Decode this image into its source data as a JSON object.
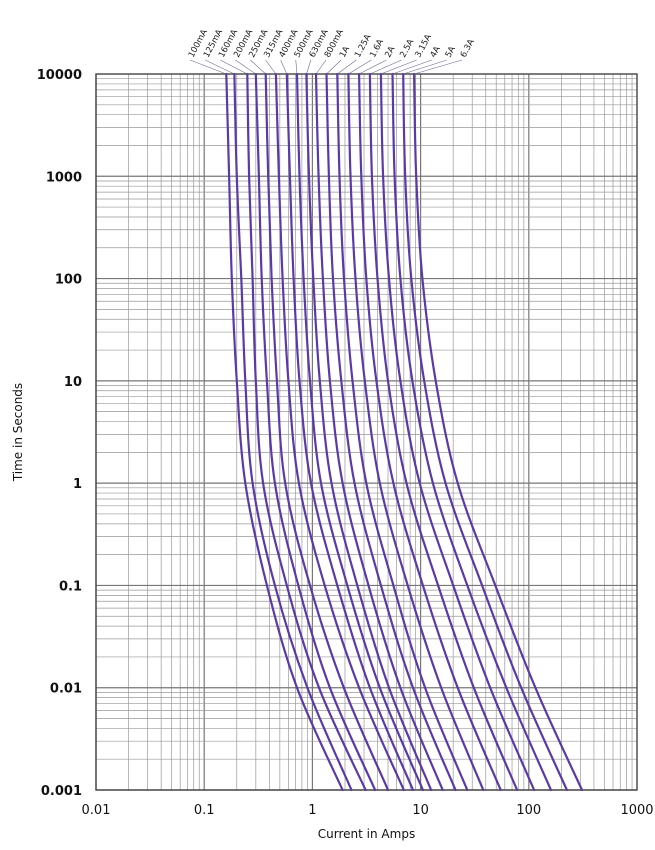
{
  "chart_data": {
    "type": "line",
    "title": "",
    "xlabel": "Current in Amps",
    "ylabel": "Time in Seconds",
    "x_scale": "log",
    "y_scale": "log",
    "xlim": [
      0.01,
      1000
    ],
    "ylim": [
      0.001,
      10000
    ],
    "x_ticks": [
      "0.01",
      "0.1",
      "1",
      "10",
      "100",
      "1000"
    ],
    "y_ticks": [
      "10000",
      "1000",
      "100",
      "10",
      "1",
      "0.1",
      "0.01",
      "0.001"
    ],
    "grid": true,
    "legend_placement": "top, rotated labels with leader lines to each curve",
    "line_color": "#5b3aa8",
    "series": [
      {
        "name": "100mA",
        "points": [
          [
            0.16,
            10000
          ],
          [
            0.17,
            1000
          ],
          [
            0.18,
            100
          ],
          [
            0.2,
            10
          ],
          [
            0.24,
            1
          ],
          [
            0.38,
            0.1
          ],
          [
            0.72,
            0.01
          ],
          [
            1.9,
            0.001
          ]
        ]
      },
      {
        "name": "125mA",
        "points": [
          [
            0.19,
            10000
          ],
          [
            0.2,
            1000
          ],
          [
            0.22,
            100
          ],
          [
            0.24,
            10
          ],
          [
            0.28,
            1
          ],
          [
            0.45,
            0.1
          ],
          [
            0.9,
            0.01
          ],
          [
            2.3,
            0.001
          ]
        ]
      },
      {
        "name": "160mA",
        "points": [
          [
            0.25,
            10000
          ],
          [
            0.26,
            1000
          ],
          [
            0.28,
            100
          ],
          [
            0.3,
            10
          ],
          [
            0.35,
            1
          ],
          [
            0.58,
            0.1
          ],
          [
            1.15,
            0.01
          ],
          [
            3.1,
            0.001
          ]
        ]
      },
      {
        "name": "200mA",
        "points": [
          [
            0.3,
            10000
          ],
          [
            0.32,
            1000
          ],
          [
            0.34,
            100
          ],
          [
            0.38,
            10
          ],
          [
            0.45,
            1
          ],
          [
            0.74,
            0.1
          ],
          [
            1.45,
            0.01
          ],
          [
            3.8,
            0.001
          ]
        ]
      },
      {
        "name": "250mA",
        "points": [
          [
            0.37,
            10000
          ],
          [
            0.39,
            1000
          ],
          [
            0.42,
            100
          ],
          [
            0.47,
            10
          ],
          [
            0.56,
            1
          ],
          [
            0.95,
            0.1
          ],
          [
            1.95,
            0.01
          ],
          [
            5.0,
            0.001
          ]
        ]
      },
      {
        "name": "315mA",
        "points": [
          [
            0.46,
            10000
          ],
          [
            0.49,
            1000
          ],
          [
            0.53,
            100
          ],
          [
            0.6,
            10
          ],
          [
            0.75,
            1
          ],
          [
            1.3,
            0.1
          ],
          [
            2.7,
            0.01
          ],
          [
            7.0,
            0.001
          ]
        ]
      },
      {
        "name": "400mA",
        "points": [
          [
            0.58,
            10000
          ],
          [
            0.62,
            1000
          ],
          [
            0.67,
            100
          ],
          [
            0.76,
            10
          ],
          [
            0.97,
            1
          ],
          [
            1.7,
            0.1
          ],
          [
            3.4,
            0.01
          ],
          [
            8.5,
            0.001
          ]
        ]
      },
      {
        "name": "500mA",
        "points": [
          [
            0.72,
            10000
          ],
          [
            0.76,
            1000
          ],
          [
            0.83,
            100
          ],
          [
            0.95,
            10
          ],
          [
            1.2,
            1
          ],
          [
            2.1,
            0.1
          ],
          [
            4.2,
            0.01
          ],
          [
            10.5,
            0.001
          ]
        ]
      },
      {
        "name": "630mA",
        "points": [
          [
            0.88,
            10000
          ],
          [
            0.93,
            1000
          ],
          [
            1.02,
            100
          ],
          [
            1.17,
            10
          ],
          [
            1.5,
            1
          ],
          [
            2.6,
            0.1
          ],
          [
            5.1,
            0.01
          ],
          [
            12.5,
            0.001
          ]
        ]
      },
      {
        "name": "800mA",
        "points": [
          [
            1.08,
            10000
          ],
          [
            1.14,
            1000
          ],
          [
            1.25,
            100
          ],
          [
            1.45,
            10
          ],
          [
            1.9,
            1
          ],
          [
            3.3,
            0.1
          ],
          [
            6.5,
            0.01
          ],
          [
            16.0,
            0.001
          ]
        ]
      },
      {
        "name": "1A",
        "points": [
          [
            1.35,
            10000
          ],
          [
            1.42,
            1000
          ],
          [
            1.55,
            100
          ],
          [
            1.85,
            10
          ],
          [
            2.45,
            1
          ],
          [
            4.3,
            0.1
          ],
          [
            8.5,
            0.01
          ],
          [
            21.0,
            0.001
          ]
        ]
      },
      {
        "name": "1.25A",
        "points": [
          [
            1.7,
            10000
          ],
          [
            1.78,
            1000
          ],
          [
            1.96,
            100
          ],
          [
            2.35,
            10
          ],
          [
            3.15,
            1
          ],
          [
            5.6,
            0.1
          ],
          [
            11.0,
            0.01
          ],
          [
            27.0,
            0.001
          ]
        ]
      },
      {
        "name": "1.6A",
        "points": [
          [
            2.15,
            10000
          ],
          [
            2.25,
            1000
          ],
          [
            2.5,
            100
          ],
          [
            3.05,
            10
          ],
          [
            4.2,
            1
          ],
          [
            7.6,
            0.1
          ],
          [
            15.5,
            0.01
          ],
          [
            38.0,
            0.001
          ]
        ]
      },
      {
        "name": "2A",
        "points": [
          [
            2.7,
            10000
          ],
          [
            2.83,
            1000
          ],
          [
            3.15,
            100
          ],
          [
            3.9,
            10
          ],
          [
            5.6,
            1
          ],
          [
            10.5,
            0.1
          ],
          [
            22.0,
            0.01
          ],
          [
            55.0,
            0.001
          ]
        ]
      },
      {
        "name": "2.5A",
        "points": [
          [
            3.4,
            10000
          ],
          [
            3.55,
            1000
          ],
          [
            4.0,
            100
          ],
          [
            5.0,
            10
          ],
          [
            7.4,
            1
          ],
          [
            14.5,
            0.1
          ],
          [
            31.0,
            0.01
          ],
          [
            78.0,
            0.001
          ]
        ]
      },
      {
        "name": "3.15A",
        "points": [
          [
            4.3,
            10000
          ],
          [
            4.5,
            1000
          ],
          [
            5.1,
            100
          ],
          [
            6.5,
            10
          ],
          [
            9.8,
            1
          ],
          [
            20.0,
            0.1
          ],
          [
            44.0,
            0.01
          ],
          [
            112.0,
            0.001
          ]
        ]
      },
      {
        "name": "4A",
        "points": [
          [
            5.5,
            10000
          ],
          [
            5.75,
            1000
          ],
          [
            6.5,
            100
          ],
          [
            8.4,
            10
          ],
          [
            13.0,
            1
          ],
          [
            27.0,
            0.1
          ],
          [
            62.0,
            0.01
          ],
          [
            160.0,
            0.001
          ]
        ]
      },
      {
        "name": "5A",
        "points": [
          [
            6.9,
            10000
          ],
          [
            7.2,
            1000
          ],
          [
            8.2,
            100
          ],
          [
            10.8,
            10
          ],
          [
            17.0,
            1
          ],
          [
            37.0,
            0.1
          ],
          [
            85.0,
            0.01
          ],
          [
            225.0,
            0.001
          ]
        ]
      },
      {
        "name": "6.3A",
        "points": [
          [
            8.7,
            10000
          ],
          [
            9.1,
            1000
          ],
          [
            10.4,
            100
          ],
          [
            13.8,
            10
          ],
          [
            22.0,
            1
          ],
          [
            49.0,
            0.1
          ],
          [
            115.0,
            0.01
          ],
          [
            310.0,
            0.001
          ]
        ]
      }
    ]
  }
}
